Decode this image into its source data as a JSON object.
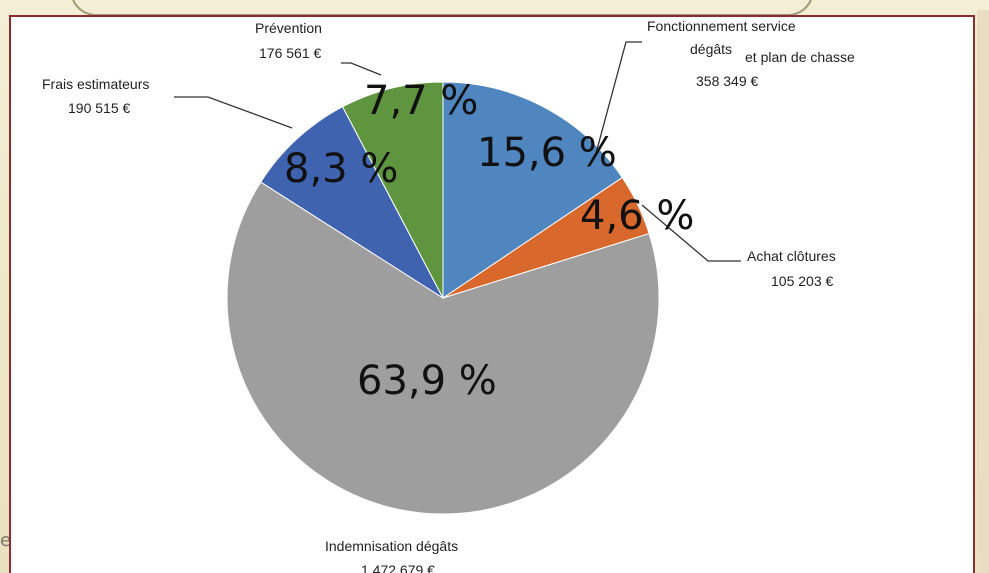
{
  "slide": {
    "edge_text": "e"
  },
  "chart_data": {
    "type": "pie",
    "title": "",
    "colors": {
      "fonctionnement": "#4f86c0",
      "achat": "#d9682d",
      "indemnisation": "#9e9e9e",
      "estimateurs": "#3f63af",
      "prevention": "#5f953f"
    },
    "slices": [
      {
        "key": "fonctionnement",
        "name_lines": [
          "Fonctionnement service",
          "dégâts",
          "et plan de chasse"
        ],
        "amount": "358 349 €",
        "value": 15.6,
        "percent_label": "15,6 %"
      },
      {
        "key": "achat",
        "name_lines": [
          "Achat clôtures"
        ],
        "amount": "105 203 €",
        "value": 4.6,
        "percent_label": "4,6 %"
      },
      {
        "key": "indemnisation",
        "name_lines": [
          "Indemnisation dégâts"
        ],
        "amount": "1 472 679 €",
        "value": 63.9,
        "percent_label": "63,9 %"
      },
      {
        "key": "estimateurs",
        "name_lines": [
          "Frais estimateurs"
        ],
        "amount": "190 515 €",
        "value": 8.3,
        "percent_label": "8,3 %"
      },
      {
        "key": "prevention",
        "name_lines": [
          "Prévention"
        ],
        "amount": "176 561 €",
        "value": 7.7,
        "percent_label": "7,7 %"
      }
    ]
  }
}
